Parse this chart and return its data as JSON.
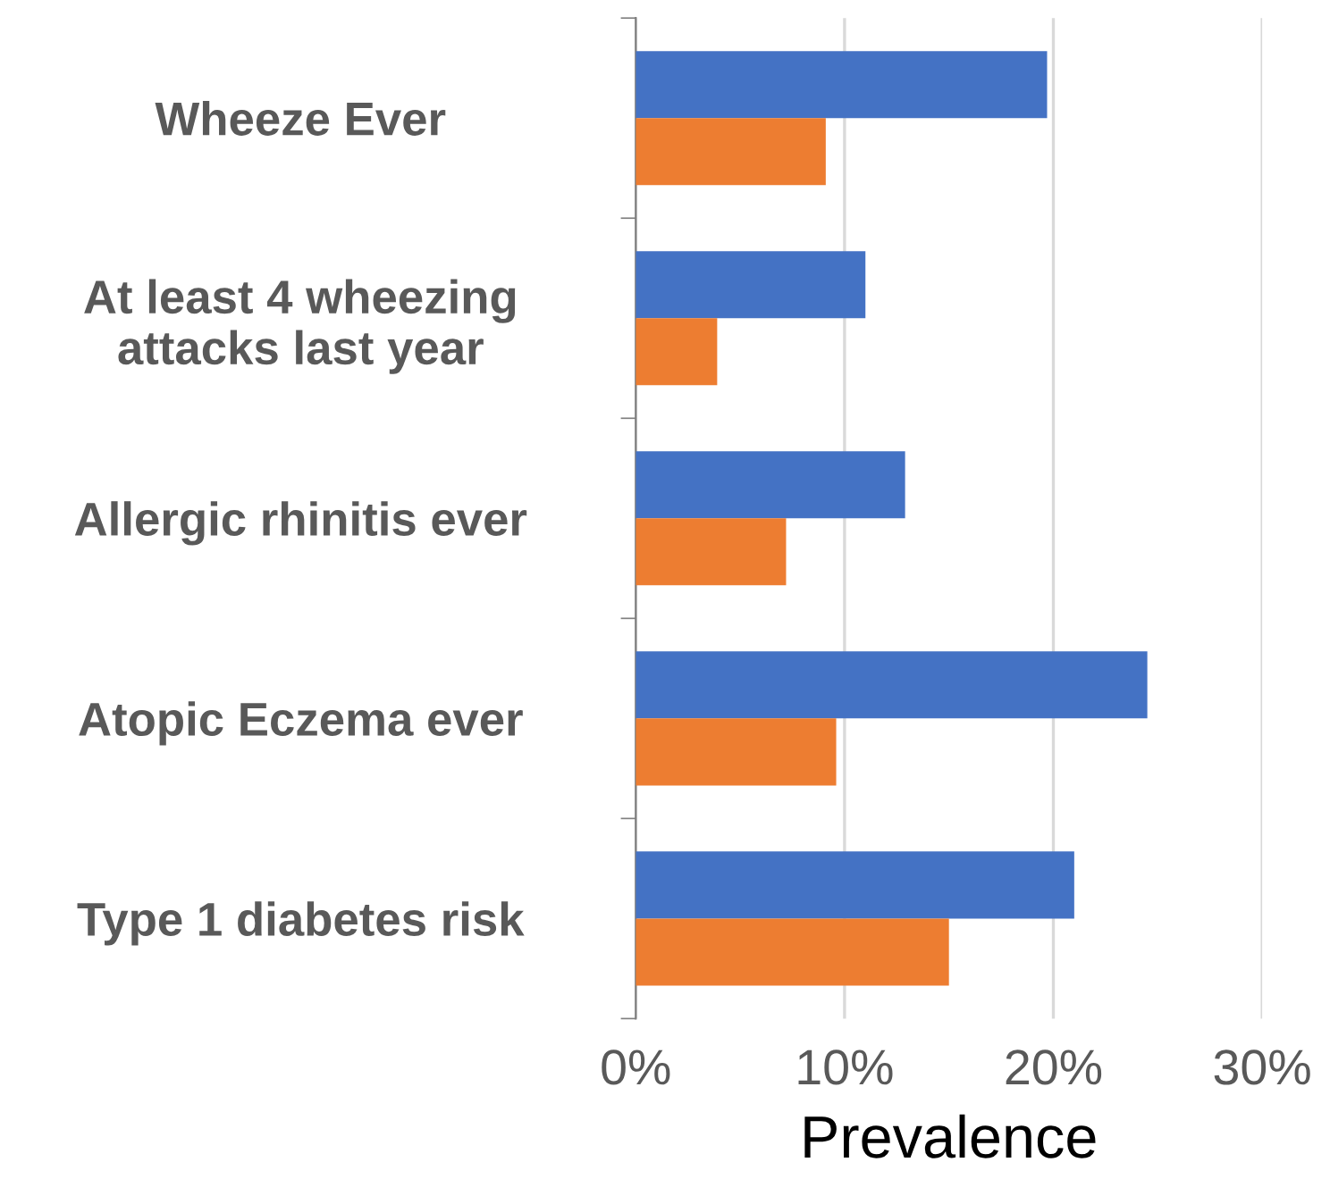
{
  "chart_data": {
    "type": "bar",
    "orientation": "horizontal",
    "xlabel": "Prevalence",
    "categories": [
      "Wheeze Ever",
      "At least 4 wheezing\nattacks last year",
      "Allergic rhinitis ever",
      "Atopic Eczema ever",
      "Type 1 diabetes risk"
    ],
    "series": [
      {
        "color": "#4472c4",
        "values": [
          19.7,
          11.0,
          12.9,
          24.5,
          21.0
        ]
      },
      {
        "color": "#ed7d31",
        "values": [
          9.1,
          3.9,
          7.2,
          9.6,
          15.0
        ]
      }
    ],
    "xlim": [
      0,
      30
    ],
    "xticks": [
      {
        "value": 0,
        "label": "0%"
      },
      {
        "value": 10,
        "label": "10%"
      },
      {
        "value": 20,
        "label": "20%"
      },
      {
        "value": 30,
        "label": "30%"
      }
    ],
    "grid": "x",
    "legend": false
  }
}
